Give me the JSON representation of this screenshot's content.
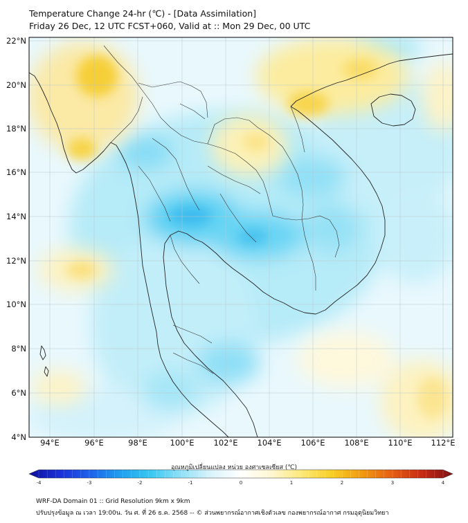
{
  "title": {
    "line1": "Temperature Change 24-hr (℃) - [Data Assimilation]",
    "line2": "Friday 26 Dec, 12 UTC FCST+060, Valid at :: Mon 29 Dec, 00 UTC"
  },
  "map": {
    "lat_labels": [
      "22°N",
      "20°N",
      "18°N",
      "16°N",
      "14°N",
      "12°N",
      "10°N",
      "8°N",
      "6°N",
      "4°N"
    ],
    "lon_labels": [
      "94°E",
      "96°E",
      "98°E",
      "100°E",
      "102°E",
      "104°E",
      "106°E",
      "108°E",
      "110°E",
      "112°E"
    ]
  },
  "colorbar": {
    "label": "อุณหภูมิเปลี่ยนแปลง หน่วย องศาเซลเซียส (℃)",
    "ticks": [
      "-4",
      "-3",
      "-2",
      "-1",
      "0",
      "1",
      "2",
      "3",
      "4"
    ],
    "min": -4,
    "max": 4
  },
  "footer": {
    "line1": "WRF-DA Domain 01 :: Grid Resolution 9km x 9km",
    "line2": "ปรับปรุงข้อมูล ณ เวลา 19:00น. วัน ศ. ที่ 26 ธ.ค. 2568 -- © ส่วนพยากรณ์อากาศเชิงตัวเลข กองพยากรณ์อากาศ กรมอุตุนิยมวิทยา"
  },
  "colors": {
    "cb_stops": [
      "#0d0f9c",
      "#1b30d8",
      "#1d62ea",
      "#1f9eee",
      "#36c8f2",
      "#8fe0f7",
      "#d9f3fb",
      "#ffffff",
      "#fff7d2",
      "#fde878",
      "#f8cf26",
      "#f29a10",
      "#e55d12",
      "#c52a13",
      "#7e1115"
    ]
  }
}
